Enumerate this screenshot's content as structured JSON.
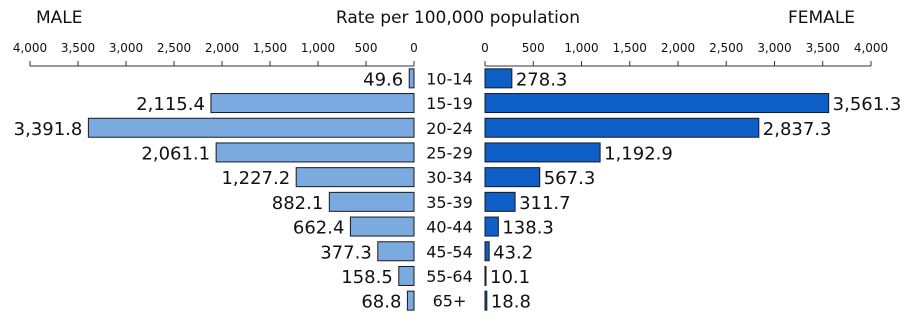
{
  "chart_data": {
    "type": "bar",
    "orientation": "horizontal",
    "layout": "population-pyramid",
    "title": "Rate per 100,000 population",
    "left_label": "MALE",
    "right_label": "FEMALE",
    "categories": [
      "10-14",
      "15-19",
      "20-24",
      "25-29",
      "30-34",
      "35-39",
      "40-44",
      "45-54",
      "55-64",
      "65+"
    ],
    "series": [
      {
        "name": "MALE",
        "side": "left",
        "values": [
          49.6,
          2115.4,
          3391.8,
          2061.1,
          1227.2,
          882.1,
          662.4,
          377.3,
          158.5,
          68.8
        ],
        "labels": [
          "49.6",
          "2,115.4",
          "3,391.8",
          "2,061.1",
          "1,227.2",
          "882.1",
          "662.4",
          "377.3",
          "158.5",
          "68.8"
        ],
        "color": "#7aaae0"
      },
      {
        "name": "FEMALE",
        "side": "right",
        "values": [
          278.3,
          3561.3,
          2837.3,
          1192.9,
          567.3,
          311.7,
          138.3,
          43.2,
          10.1,
          18.8
        ],
        "labels": [
          "278.3",
          "3,561.3",
          "2,837.3",
          "1,192.9",
          "567.3",
          "311.7",
          "138.3",
          "43.2",
          "10.1",
          "18.8"
        ],
        "color": "#0f5fc8"
      }
    ],
    "xlim": [
      0,
      4000
    ],
    "ticks": [
      4000,
      3500,
      3000,
      2500,
      2000,
      1500,
      1000,
      500,
      0
    ],
    "tick_labels_male": [
      "4,000",
      "3,500",
      "3,000",
      "2,500",
      "2,000",
      "1,500",
      "1,000",
      "500",
      "0"
    ],
    "tick_labels_female": [
      "0",
      "500",
      "1,000",
      "1,500",
      "2,000",
      "2,500",
      "3,000",
      "3,500",
      "4,000"
    ],
    "grid": false,
    "legend": "none"
  }
}
